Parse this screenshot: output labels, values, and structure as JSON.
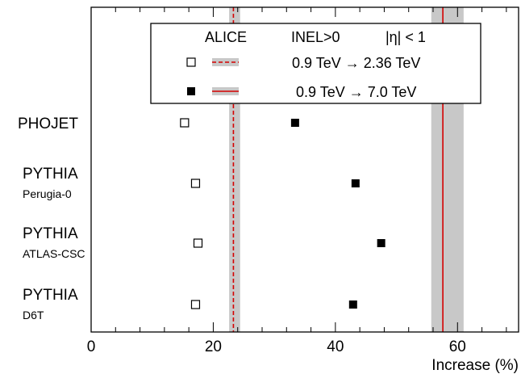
{
  "chart_data": {
    "type": "scatter",
    "xlabel": "Increase (%)",
    "xlim": [
      0,
      70
    ],
    "x_ticks": [
      "0",
      "20",
      "40",
      "60"
    ],
    "legend": {
      "experiment": "ALICE",
      "selection": "INEL>0",
      "eta_cut": "|η| < 1",
      "entries": [
        {
          "label": "0.9 TeV → 2.36 TeV",
          "marker": "open-square",
          "line": "dashed"
        },
        {
          "label": "0.9 TeV → 7.0 TeV",
          "marker": "filled-square",
          "line": "solid"
        }
      ]
    },
    "categories": [
      {
        "name": "PHOJET",
        "sub": ""
      },
      {
        "name": "PYTHIA",
        "sub": "Perugia-0"
      },
      {
        "name": "PYTHIA",
        "sub": "ATLAS-CSC"
      },
      {
        "name": "PYTHIA",
        "sub": "D6T"
      }
    ],
    "series": [
      {
        "name": "0.9 TeV → 2.36 TeV",
        "marker": "open-square",
        "values": [
          15.3,
          17.1,
          17.5,
          17.1
        ]
      },
      {
        "name": "0.9 TeV → 7.0 TeV",
        "marker": "filled-square",
        "values": [
          33.4,
          43.3,
          47.5,
          42.9
        ]
      }
    ],
    "data_measurements": [
      {
        "name": "0.9 TeV → 2.36 TeV",
        "value": 23.3,
        "band": [
          22.6,
          24.4
        ],
        "line": "dashed"
      },
      {
        "name": "0.9 TeV → 7.0 TeV",
        "value": 57.6,
        "band": [
          55.7,
          61.0
        ],
        "line": "solid"
      }
    ],
    "colors": {
      "band": "#c8c8c8",
      "line": "#d40000",
      "marker": "#000000"
    }
  }
}
